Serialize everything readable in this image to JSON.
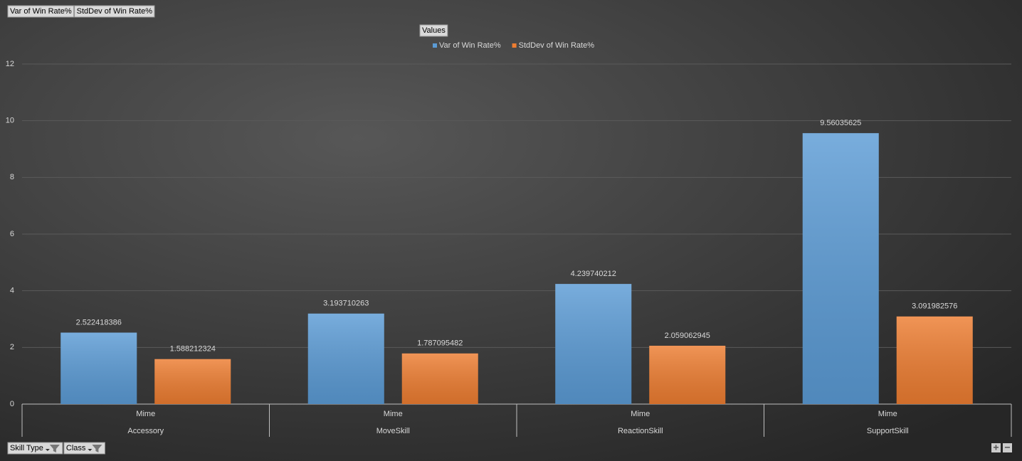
{
  "chart_data": {
    "type": "bar",
    "field_buttons": [
      "Var of Win Rate%",
      "StdDev of Win Rate%"
    ],
    "legend_title": "Values",
    "axis_field_buttons": [
      "Skill Type",
      "Class"
    ],
    "categories": [
      "Mime",
      "Mime",
      "Mime",
      "Mime"
    ],
    "category_groups": [
      "Accessory",
      "MoveSkill",
      "ReactionSkill",
      "SupportSkill"
    ],
    "series": [
      {
        "name": "Var of Win Rate%",
        "color": "#5b9bd5",
        "values": [
          2.522418386,
          3.193710263,
          4.239740212,
          9.56035625
        ]
      },
      {
        "name": "StdDev of Win Rate%",
        "color": "#ed7d31",
        "values": [
          1.588212324,
          1.787095482,
          2.059062945,
          3.091982576
        ]
      }
    ],
    "ylim": [
      0,
      12
    ],
    "yticks": [
      0,
      2,
      4,
      6,
      8,
      10,
      12
    ],
    "grid": true
  }
}
